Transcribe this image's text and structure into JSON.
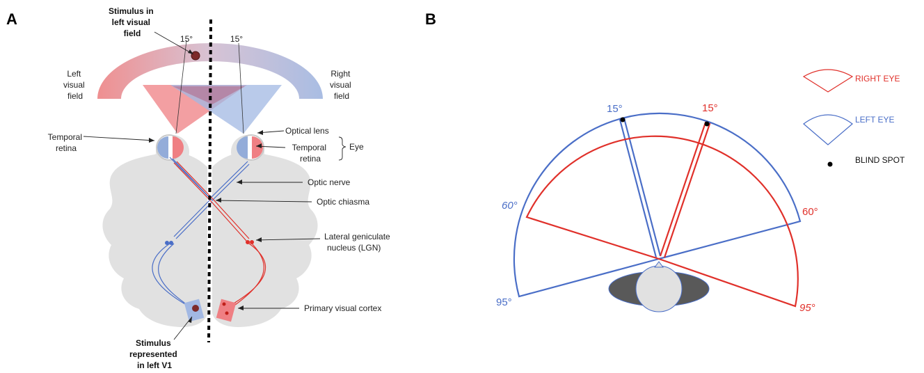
{
  "panel_a": {
    "panel_label": "A",
    "stimulus_field": [
      "Stimulus in",
      "left visual",
      "field"
    ],
    "left_field": [
      "Left",
      "visual",
      "field"
    ],
    "right_field": [
      "Right",
      "visual",
      "field"
    ],
    "deg_left": "15°",
    "deg_right": "15°",
    "temporal_retina_left": [
      "Temporal",
      "retina"
    ],
    "optical_lens": "Optical lens",
    "temporal_retina_right": [
      "Temporal",
      "retina"
    ],
    "eye": "Eye",
    "optic_nerve": "Optic nerve",
    "optic_chiasma": "Optic chiasma",
    "lgn": [
      "Lateral geniculate",
      "nucleus (LGN)"
    ],
    "primary_cortex": "Primary visual cortex",
    "stimulus_v1": [
      "Stimulus",
      "represented",
      "in left V1"
    ]
  },
  "panel_b": {
    "panel_label": "B",
    "blue_15": "15°",
    "red_15": "15°",
    "blue_60": "60°",
    "red_60": "60°",
    "blue_95": "95°",
    "red_95": "95°",
    "legend": {
      "right_eye": "RIGHT EYE",
      "left_eye": "LEFT EYE",
      "blind_spot": "BLIND SPOT"
    },
    "colors": {
      "right_eye": "#e0302a",
      "left_eye": "#4a6ec7",
      "head": "#595959"
    }
  }
}
